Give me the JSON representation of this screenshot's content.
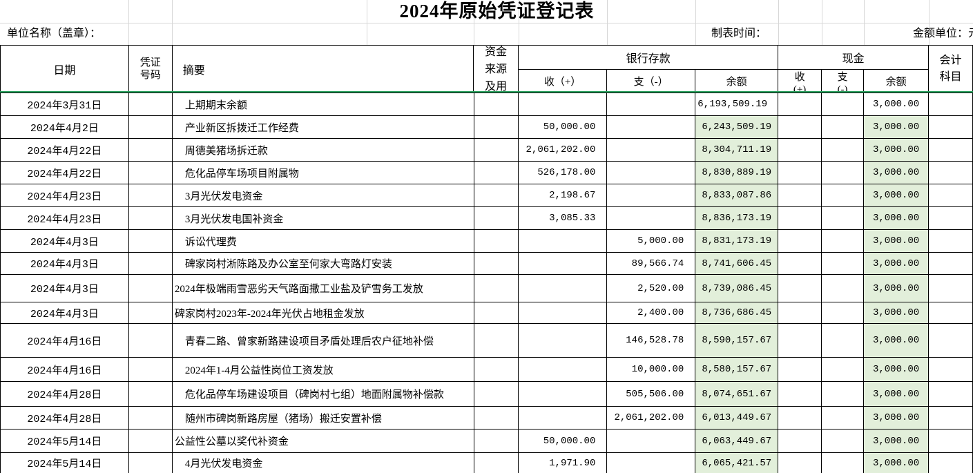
{
  "title": "2024年原始凭证登记表",
  "info_bar": {
    "unit_name_label": "单位名称（盖章）：",
    "made_time_label": "制表时间：",
    "amount_unit_label": "金额单位：元"
  },
  "colors": {
    "highlight_fill": "#e2efda",
    "freeze_line": "#2aa35f",
    "border": "#000000",
    "gridline": "#d7d7d7"
  },
  "table": {
    "headers": {
      "date": "日期",
      "voucher_no": "凭证\n号码",
      "summary": "摘要",
      "fund_source": "资金\n来源\n及用",
      "bank_group": "银行存款",
      "cash_group": "现金",
      "bank_in": "收（+）",
      "bank_out": "支（-）",
      "bank_balance": "余额",
      "cash_in": "收\n(+)",
      "cash_out": "支\n(-)",
      "cash_balance": "余额",
      "subject": "会计\n科目"
    },
    "rows": [
      {
        "date": "2024年3月31日",
        "voucher_no": "",
        "summary": "　上期期末余额",
        "fund_source": "",
        "bank_in": "",
        "bank_out": "",
        "bank_balance": "6,193,509.19",
        "cash_in": "",
        "cash_out": "",
        "cash_balance": "3,000.00",
        "subject": "",
        "highlight": false
      },
      {
        "date": "2024年4月2日",
        "voucher_no": "",
        "summary": "　产业新区拆拨迁工作经费",
        "fund_source": "",
        "bank_in": "50,000.00",
        "bank_out": "",
        "bank_balance": "6,243,509.19",
        "cash_in": "",
        "cash_out": "",
        "cash_balance": "3,000.00",
        "subject": "",
        "highlight": true
      },
      {
        "date": "2024年4月22日",
        "voucher_no": "",
        "summary": "　周德美猪场拆迁款",
        "fund_source": "",
        "bank_in": "2,061,202.00",
        "bank_out": "",
        "bank_balance": "8,304,711.19",
        "cash_in": "",
        "cash_out": "",
        "cash_balance": "3,000.00",
        "subject": "",
        "highlight": true
      },
      {
        "date": "2024年4月22日",
        "voucher_no": "",
        "summary": "　危化品停车场项目附属物",
        "fund_source": "",
        "bank_in": "526,178.00",
        "bank_out": "",
        "bank_balance": "8,830,889.19",
        "cash_in": "",
        "cash_out": "",
        "cash_balance": "3,000.00",
        "subject": "",
        "highlight": true
      },
      {
        "date": "2024年4月23日",
        "voucher_no": "",
        "summary": "　3月光伏发电资金",
        "fund_source": "",
        "bank_in": "2,198.67",
        "bank_out": "",
        "bank_balance": "8,833,087.86",
        "cash_in": "",
        "cash_out": "",
        "cash_balance": "3,000.00",
        "subject": "",
        "highlight": true
      },
      {
        "date": "2024年4月23日",
        "voucher_no": "",
        "summary": "　3月光伏发电国补资金",
        "fund_source": "",
        "bank_in": "3,085.33",
        "bank_out": "",
        "bank_balance": "8,836,173.19",
        "cash_in": "",
        "cash_out": "",
        "cash_balance": "3,000.00",
        "subject": "",
        "highlight": true
      },
      {
        "date": "2024年4月3日",
        "voucher_no": "",
        "summary": "　诉讼代理费",
        "fund_source": "",
        "bank_in": "",
        "bank_out": "5,000.00",
        "bank_balance": "8,831,173.19",
        "cash_in": "",
        "cash_out": "",
        "cash_balance": "3,000.00",
        "subject": "",
        "highlight": true
      },
      {
        "date": "2024年4月3日",
        "voucher_no": "",
        "summary": "　碑家岗村淅陈路及办公室至何家大弯路灯安装",
        "fund_source": "",
        "bank_in": "",
        "bank_out": "89,566.74",
        "bank_balance": "8,741,606.45",
        "cash_in": "",
        "cash_out": "",
        "cash_balance": "3,000.00",
        "subject": "",
        "highlight": true
      },
      {
        "date": "2024年4月3日",
        "voucher_no": "",
        "summary": "2024年极端雨雪恶劣天气路面撒工业盐及铲雪务工发放",
        "fund_source": "",
        "bank_in": "",
        "bank_out": "2,520.00",
        "bank_balance": "8,739,086.45",
        "cash_in": "",
        "cash_out": "",
        "cash_balance": "3,000.00",
        "subject": "",
        "highlight": true
      },
      {
        "date": "2024年4月3日",
        "voucher_no": "",
        "summary": "碑家岗村2023年-2024年光伏占地租金发放",
        "fund_source": "",
        "bank_in": "",
        "bank_out": "2,400.00",
        "bank_balance": "8,736,686.45",
        "cash_in": "",
        "cash_out": "",
        "cash_balance": "3,000.00",
        "subject": "",
        "highlight": true
      },
      {
        "date": "2024年4月16日",
        "voucher_no": "",
        "summary": "　青春二路、曾家新路建设项目矛盾处理后农户征地补偿",
        "fund_source": "",
        "bank_in": "",
        "bank_out": "146,528.78",
        "bank_balance": "8,590,157.67",
        "cash_in": "",
        "cash_out": "",
        "cash_balance": "3,000.00",
        "subject": "",
        "highlight": true
      },
      {
        "date": "2024年4月16日",
        "voucher_no": "",
        "summary": "　2024年1-4月公益性岗位工资发放",
        "fund_source": "",
        "bank_in": "",
        "bank_out": "10,000.00",
        "bank_balance": "8,580,157.67",
        "cash_in": "",
        "cash_out": "",
        "cash_balance": "3,000.00",
        "subject": "",
        "highlight": true
      },
      {
        "date": "2024年4月28日",
        "voucher_no": "",
        "summary": "　危化品停车场建设项目（碑岗村七组）地面附属物补偿款",
        "fund_source": "",
        "bank_in": "",
        "bank_out": "505,506.00",
        "bank_balance": "8,074,651.67",
        "cash_in": "",
        "cash_out": "",
        "cash_balance": "3,000.00",
        "subject": "",
        "highlight": true
      },
      {
        "date": "2024年4月28日",
        "voucher_no": "",
        "summary": "　随州市碑岗新路房屋（猪场）搬迁安置补偿",
        "fund_source": "",
        "bank_in": "",
        "bank_out": "2,061,202.00",
        "bank_balance": "6,013,449.67",
        "cash_in": "",
        "cash_out": "",
        "cash_balance": "3,000.00",
        "subject": "",
        "highlight": true
      },
      {
        "date": "2024年5月14日",
        "voucher_no": "",
        "summary": "公益性公墓以奖代补资金",
        "fund_source": "",
        "bank_in": "50,000.00",
        "bank_out": "",
        "bank_balance": "6,063,449.67",
        "cash_in": "",
        "cash_out": "",
        "cash_balance": "3,000.00",
        "subject": "",
        "highlight": true
      },
      {
        "date": "2024年5月14日",
        "voucher_no": "",
        "summary": "　4月光伏发电资金",
        "fund_source": "",
        "bank_in": "1,971.90",
        "bank_out": "",
        "bank_balance": "6,065,421.57",
        "cash_in": "",
        "cash_out": "",
        "cash_balance": "3,000.00",
        "subject": "",
        "highlight": true
      }
    ]
  }
}
